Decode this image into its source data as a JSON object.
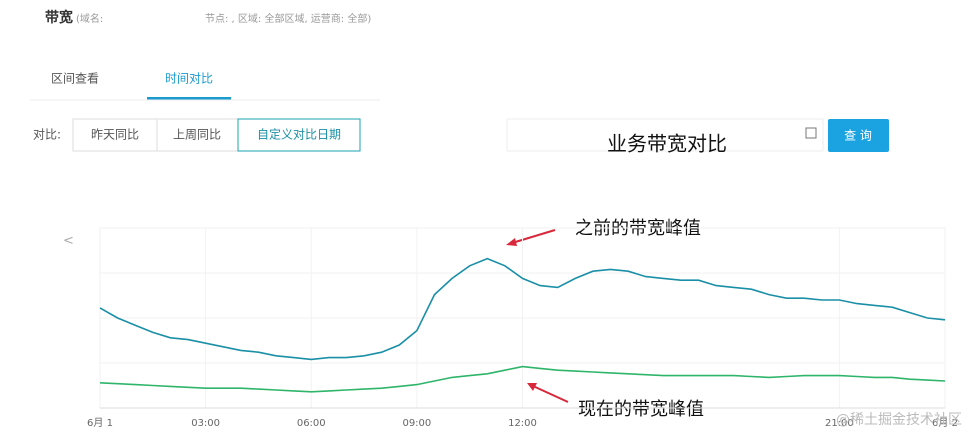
{
  "ui": {
    "header_title": "带宽",
    "header_domain": "(域名:",
    "header_filter": "节点: , 区域: 全部区域, 运营商: 全部)",
    "tabs": [
      "区间查看",
      "时间对比"
    ],
    "compare_label": "对比:",
    "compare_buttons": [
      "昨天同比",
      "上周同比",
      "自定义对比日期"
    ],
    "query_button": "查 询",
    "nav_prev": "<",
    "watermark": "@稀土掘金技术社区"
  },
  "chart_data": {
    "type": "line",
    "title": "业务带宽对比",
    "annotations": [
      "之前的带宽峰值",
      "现在的带宽峰值"
    ],
    "x": [
      0,
      0.5,
      1,
      1.5,
      2,
      2.5,
      3,
      3.5,
      4,
      4.5,
      5,
      5.5,
      6,
      6.5,
      7,
      7.5,
      8,
      8.5,
      9,
      9.5,
      10,
      10.5,
      11,
      11.5,
      12,
      12.5,
      13,
      13.5,
      14,
      14.5,
      15,
      15.5,
      16,
      16.5,
      17,
      17.5,
      18,
      18.5,
      19,
      19.5,
      20,
      20.5,
      21,
      21.5,
      22,
      22.5,
      23,
      23.5,
      24
    ],
    "xlim": [
      0,
      24
    ],
    "xticks": [
      {
        "value": 0,
        "label": "6月 1"
      },
      {
        "value": 3,
        "label": "03:00"
      },
      {
        "value": 6,
        "label": "06:00"
      },
      {
        "value": 9,
        "label": "09:00"
      },
      {
        "value": 12,
        "label": "12:00"
      },
      {
        "value": 21,
        "label": "21:00"
      },
      {
        "value": 24,
        "label": "6月 2"
      }
    ],
    "ylim": [
      0,
      100
    ],
    "series": [
      {
        "color": "#1a8fa6",
        "values": [
          55.6,
          50,
          46,
          42,
          39,
          38,
          36,
          34,
          32,
          31,
          29,
          28,
          27,
          28,
          28,
          29,
          31,
          35,
          43,
          63,
          72,
          79,
          83,
          79,
          72,
          68,
          67,
          72,
          76,
          77,
          76,
          73,
          72,
          71,
          71,
          68,
          67,
          66,
          63,
          61,
          61,
          60,
          60,
          58,
          57,
          56,
          53,
          50,
          49
        ]
      },
      {
        "color": "#2fb56a",
        "values": [
          14,
          13.5,
          13,
          12.5,
          12,
          11.5,
          11,
          11,
          11,
          10.5,
          10,
          9.5,
          9,
          9.5,
          10,
          10.5,
          11,
          12,
          13,
          15,
          17,
          18,
          19,
          21,
          23,
          22,
          21,
          20.5,
          20,
          19.5,
          19,
          18.5,
          18,
          18,
          18,
          18,
          18,
          17.5,
          17,
          17.5,
          18,
          18,
          18,
          17.5,
          17,
          17,
          16,
          15.5,
          15
        ]
      }
    ]
  }
}
